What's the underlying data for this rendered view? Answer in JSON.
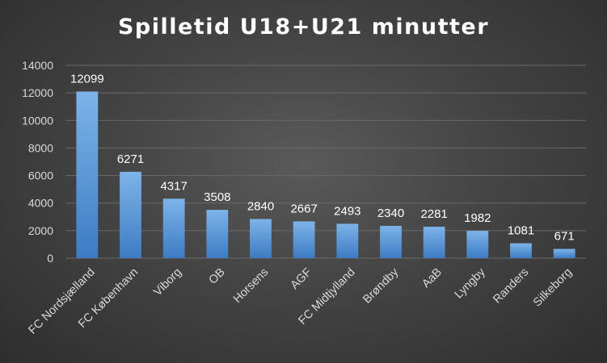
{
  "chart_data": {
    "type": "bar",
    "title": "Spilletid U18+U21 minutter",
    "xlabel": "",
    "ylabel": "",
    "categories": [
      "FC Nordsjælland",
      "FC København",
      "Viborg",
      "OB",
      "Horsens",
      "AGF",
      "FC Midtjylland",
      "Brøndby",
      "AaB",
      "Lyngby",
      "Randers",
      "Silkeborg"
    ],
    "values": [
      12099,
      6271,
      4317,
      3508,
      2840,
      2667,
      2493,
      2340,
      2281,
      1982,
      1081,
      671
    ],
    "ylim": [
      0,
      14000
    ],
    "yticks": [
      0,
      2000,
      4000,
      6000,
      8000,
      10000,
      12000,
      14000
    ],
    "grid": true,
    "legend": "none",
    "colors": {
      "bar_top": "#7db3e8",
      "bar_bottom": "#3d7cc4",
      "grid": "#6a6a6a",
      "text": "#d9d9d9",
      "title": "#ffffff"
    }
  }
}
